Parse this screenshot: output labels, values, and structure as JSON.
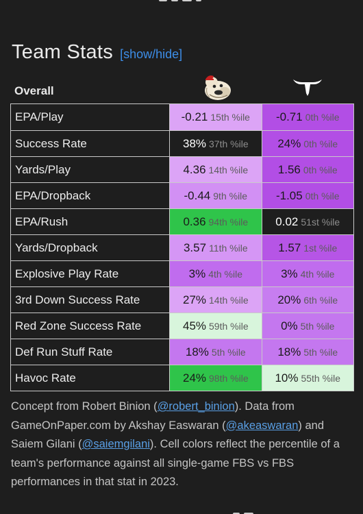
{
  "header": {
    "title": "Team Stats",
    "toggle_label": "[show/hide]"
  },
  "overall": {
    "label": "Overall",
    "team_a_logo": "bulldog-logo-icon",
    "team_b_logo": "longhorn-logo-icon"
  },
  "colors": {
    "background": "#1e1e1e",
    "very_low": "#b24ee5",
    "low": "#cd7ef3",
    "mid_low": "#dca4f6",
    "high": "#2fc44a",
    "mid_high": "#c6f0cc"
  },
  "rows": [
    {
      "label": "EPA/Play",
      "a_value": "-0.21",
      "a_pct": "15th %ile",
      "a_color": "#dca4f6",
      "b_value": "-0.71",
      "b_pct": "0th %ile",
      "b_color": "#b24ee5"
    },
    {
      "label": "Success Rate",
      "a_value": "38%",
      "a_pct": "37th %ile",
      "a_color": "",
      "b_value": "24%",
      "b_pct": "0th %ile",
      "b_color": "#b24ee5"
    },
    {
      "label": "Yards/Play",
      "a_value": "4.36",
      "a_pct": "14th %ile",
      "a_color": "#dca4f6",
      "b_value": "1.56",
      "b_pct": "0th %ile",
      "b_color": "#b24ee5"
    },
    {
      "label": "EPA/Dropback",
      "a_value": "-0.44",
      "a_pct": "9th %ile",
      "a_color": "#d290f4",
      "b_value": "-1.05",
      "b_pct": "0th %ile",
      "b_color": "#b24ee5"
    },
    {
      "label": "EPA/Rush",
      "a_value": "0.36",
      "a_pct": "94th %ile",
      "a_color": "#2fc44a",
      "b_value": "0.02",
      "b_pct": "51st %ile",
      "b_color": ""
    },
    {
      "label": "Yards/Dropback",
      "a_value": "3.57",
      "a_pct": "11th %ile",
      "a_color": "#d596f5",
      "b_value": "1.57",
      "b_pct": "1st %ile",
      "b_color": "#b655e6"
    },
    {
      "label": "Explosive Play Rate",
      "a_value": "3%",
      "a_pct": "4th %ile",
      "a_color": "#c06cee",
      "b_value": "3%",
      "b_pct": "4th %ile",
      "b_color": "#c06cee"
    },
    {
      "label": "3rd Down Success Rate",
      "a_value": "27%",
      "a_pct": "14th %ile",
      "a_color": "#dca4f6",
      "b_value": "20%",
      "b_pct": "6th %ile",
      "b_color": "#c77df0"
    },
    {
      "label": "Red Zone Success Rate",
      "a_value": "45%",
      "a_pct": "59th %ile",
      "a_color": "#d8f5dc",
      "b_value": "0%",
      "b_pct": "5th %ile",
      "b_color": "#c477ef"
    },
    {
      "label": "Def Run Stuff Rate",
      "a_value": "18%",
      "a_pct": "5th %ile",
      "a_color": "#c477ef",
      "b_value": "18%",
      "b_pct": "5th %ile",
      "b_color": "#c477ef"
    },
    {
      "label": "Havoc Rate",
      "a_value": "24%",
      "a_pct": "98th %ile",
      "a_color": "#2fc44a",
      "b_value": "10%",
      "b_pct": "55th %ile",
      "b_color": "#d8f5dc"
    }
  ],
  "footer": {
    "t1": "Concept from Robert Binion (",
    "l1": "@robert_binion",
    "t2": "). Data from GameOnPaper.com by Akshay Easwaran (",
    "l2": "@akeaswaran",
    "t3": ") and Saiem Gilani (",
    "l3": "@saiemgilani",
    "t4": "). Cell colors reflect the percentile of a team's performance against all single-game FBS vs FBS performances in that stat in 2023."
  }
}
